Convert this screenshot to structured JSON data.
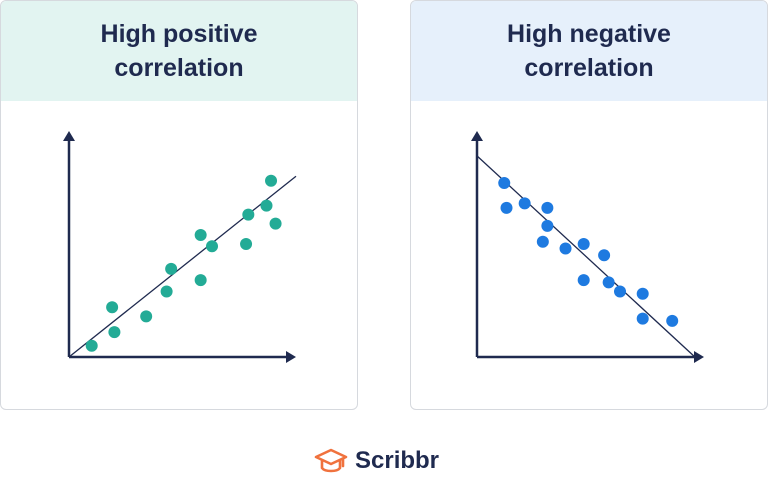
{
  "colors": {
    "header_left": "#e2f4f1",
    "header_right": "#e6f0fb",
    "axis": "#1f2a4f",
    "fit_line": "#1f2a4f",
    "teal": "#23ab96",
    "blue": "#1e7ae0",
    "brand_orange": "#f0723e"
  },
  "panels": [
    {
      "title": "High positive correlation"
    },
    {
      "title": "High negative correlation"
    }
  ],
  "brand": {
    "name": "Scribbr",
    "icon": "graduation-cap-icon"
  },
  "chart_data": [
    {
      "type": "scatter",
      "title": "High positive correlation",
      "xlabel": "",
      "ylabel": "",
      "xlim": [
        0,
        10
      ],
      "ylim": [
        0,
        10
      ],
      "color": "#23ab96",
      "grid": false,
      "trendline": {
        "x": [
          0,
          10
        ],
        "y": [
          0,
          8
        ]
      },
      "points": [
        {
          "x": 1.0,
          "y": 0.5
        },
        {
          "x": 2.0,
          "y": 1.1
        },
        {
          "x": 1.9,
          "y": 2.2
        },
        {
          "x": 3.4,
          "y": 1.8
        },
        {
          "x": 4.3,
          "y": 2.9
        },
        {
          "x": 4.5,
          "y": 3.9
        },
        {
          "x": 5.8,
          "y": 3.4
        },
        {
          "x": 5.8,
          "y": 5.4
        },
        {
          "x": 6.3,
          "y": 4.9
        },
        {
          "x": 7.8,
          "y": 5.0
        },
        {
          "x": 7.9,
          "y": 6.3
        },
        {
          "x": 8.7,
          "y": 6.7
        },
        {
          "x": 9.1,
          "y": 5.9
        },
        {
          "x": 8.9,
          "y": 7.8
        }
      ]
    },
    {
      "type": "scatter",
      "title": "High negative correlation",
      "xlabel": "",
      "ylabel": "",
      "xlim": [
        0,
        10
      ],
      "ylim": [
        0,
        10
      ],
      "color": "#1e7ae0",
      "grid": false,
      "trendline": {
        "x": [
          0,
          9.6
        ],
        "y": [
          8.9,
          0
        ]
      },
      "points": [
        {
          "x": 1.2,
          "y": 7.7
        },
        {
          "x": 1.3,
          "y": 6.6
        },
        {
          "x": 2.1,
          "y": 6.8
        },
        {
          "x": 3.1,
          "y": 6.6
        },
        {
          "x": 3.1,
          "y": 5.8
        },
        {
          "x": 2.9,
          "y": 5.1
        },
        {
          "x": 3.9,
          "y": 4.8
        },
        {
          "x": 4.7,
          "y": 5.0
        },
        {
          "x": 5.6,
          "y": 4.5
        },
        {
          "x": 4.7,
          "y": 3.4
        },
        {
          "x": 5.8,
          "y": 3.3
        },
        {
          "x": 6.3,
          "y": 2.9
        },
        {
          "x": 7.3,
          "y": 2.8
        },
        {
          "x": 7.3,
          "y": 1.7
        },
        {
          "x": 8.6,
          "y": 1.6
        }
      ]
    }
  ]
}
